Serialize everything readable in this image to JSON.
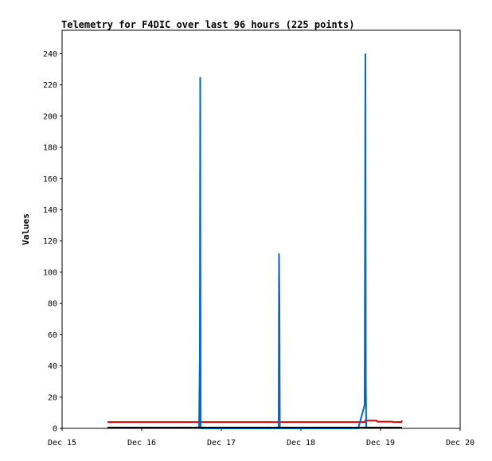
{
  "chart_data": {
    "type": "line",
    "title": "Telemetry for F4DIC over last 96 hours (225 points)",
    "xlabel": "",
    "ylabel": "Values",
    "x_ticks": [
      "Dec 15",
      "Dec 16",
      "Dec 17",
      "Dec 18",
      "Dec 19",
      "Dec 20"
    ],
    "x_range_days": [
      15,
      20
    ],
    "ylim": [
      0,
      255
    ],
    "y_ticks": [
      0,
      20,
      40,
      60,
      80,
      100,
      120,
      140,
      160,
      180,
      200,
      220,
      240
    ],
    "grid": false,
    "legend": "none",
    "series": [
      {
        "color": "#0066cc",
        "points": [
          [
            16.72,
            0
          ],
          [
            16.73,
            48
          ],
          [
            16.735,
            225
          ],
          [
            16.74,
            0
          ],
          [
            17.72,
            0
          ],
          [
            17.725,
            112
          ],
          [
            17.73,
            80
          ],
          [
            17.735,
            0
          ],
          [
            18.72,
            0
          ],
          [
            18.8,
            15
          ],
          [
            18.81,
            240
          ],
          [
            18.815,
            32
          ],
          [
            18.82,
            0
          ]
        ]
      },
      {
        "color": "#dd0000",
        "points": [
          [
            15.57,
            4
          ],
          [
            18.8,
            4
          ],
          [
            18.81,
            5
          ],
          [
            18.95,
            5
          ],
          [
            18.96,
            4.3
          ],
          [
            19.15,
            4.3
          ],
          [
            19.16,
            4
          ],
          [
            19.26,
            4
          ],
          [
            19.27,
            5
          ]
        ]
      },
      {
        "color": "#000000",
        "points": [
          [
            15.57,
            0.5
          ],
          [
            19.27,
            0.5
          ]
        ]
      }
    ]
  }
}
